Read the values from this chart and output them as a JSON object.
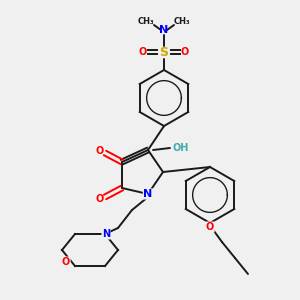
{
  "bg_color": "#f0f0f0",
  "bond_color": "#1a1a1a",
  "colors": {
    "N": "#0000ff",
    "O": "#ff0000",
    "S": "#ccaa00",
    "C": "#1a1a1a",
    "H": "#555555",
    "OH": "#44aaaa"
  },
  "font_size": 7,
  "lw": 1.4
}
